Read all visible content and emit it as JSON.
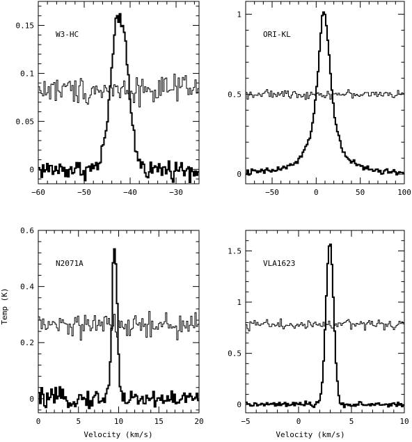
{
  "xlabel": "Velocity (km/s)",
  "ylabel": "Temp (K)",
  "chart_data": [
    {
      "type": "line",
      "label": "W3-HC",
      "xlim": [
        -60,
        -25
      ],
      "ylim": [
        -0.015,
        0.175
      ],
      "xticks": [
        -60,
        -50,
        -40,
        -30
      ],
      "yticks": [
        0,
        0.05,
        0.1,
        0.15
      ],
      "xticklabels": [
        "−60",
        "−50",
        "−40",
        "−30"
      ],
      "yticklabels": [
        "0",
        "0.05",
        "0.1",
        "0.15"
      ],
      "series": [
        {
          "style": "thick",
          "profile": {
            "peak_velocity": -42.3,
            "peak": 0.162,
            "fwhm": 4.2,
            "baseline": 0.0,
            "noise": 0.005
          }
        },
        {
          "style": "thin",
          "profile": {
            "baseline": 0.083,
            "noise": 0.007
          }
        }
      ]
    },
    {
      "type": "line",
      "label": "ORI-KL",
      "xlim": [
        -80,
        100
      ],
      "ylim": [
        -0.06,
        1.08
      ],
      "xticks": [
        -50,
        0,
        50,
        100
      ],
      "yticks": [
        0,
        0.5,
        1
      ],
      "xticklabels": [
        "−50",
        "0",
        "50",
        "100"
      ],
      "yticklabels": [
        "0",
        "0.5",
        "1"
      ],
      "series": [
        {
          "style": "thick",
          "profile": {
            "peak_velocity": 9,
            "peak": 1.02,
            "fwhm": 18,
            "shape": "lorentzian",
            "baseline": 0.0,
            "noise": 0.01
          }
        },
        {
          "style": "thin",
          "profile": {
            "baseline": 0.5,
            "noise": 0.012
          }
        }
      ]
    },
    {
      "type": "line",
      "label": "N2071A",
      "xlim": [
        0,
        20
      ],
      "ylim": [
        -0.05,
        0.6
      ],
      "xticks": [
        0,
        5,
        10,
        15,
        20
      ],
      "yticks": [
        0,
        0.2,
        0.4,
        0.6
      ],
      "xticklabels": [
        "0",
        "5",
        "10",
        "15",
        "20"
      ],
      "yticklabels": [
        "0",
        "0.2",
        "0.4",
        "0.6"
      ],
      "series": [
        {
          "style": "thick",
          "profile": {
            "peak_velocity": 9.5,
            "peak": 0.56,
            "fwhm": 0.75,
            "baseline": 0.0,
            "noise": 0.016
          }
        },
        {
          "style": "thin",
          "profile": {
            "baseline": 0.26,
            "noise": 0.022
          }
        }
      ]
    },
    {
      "type": "line",
      "label": "VLA1623",
      "xlim": [
        -5,
        10
      ],
      "ylim": [
        -0.08,
        1.7
      ],
      "xticks": [
        -5,
        0,
        5,
        10
      ],
      "yticks": [
        0,
        0.5,
        1,
        1.5
      ],
      "xticklabels": [
        "−5",
        "0",
        "5",
        "10"
      ],
      "yticklabels": [
        "0",
        "0.5",
        "1",
        "1.5"
      ],
      "series": [
        {
          "style": "thick",
          "profile": {
            "peak_velocity": 2.95,
            "peak": 1.58,
            "fwhm": 0.85,
            "baseline": 0.0,
            "noise": 0.012
          }
        },
        {
          "style": "thin",
          "profile": {
            "baseline": 0.78,
            "noise": 0.025
          }
        }
      ]
    }
  ]
}
